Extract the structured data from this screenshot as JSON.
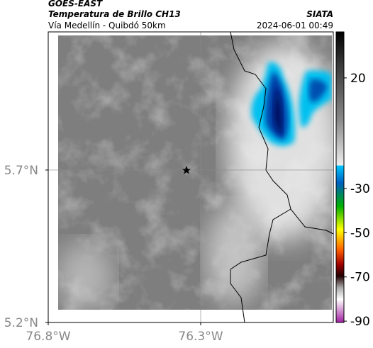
{
  "header": {
    "satellite": "GOES-EAST",
    "product": "Temperatura de Brillo CH13",
    "region": "Vía Medellín - Quibdó 50km",
    "agency": "SIATA",
    "datetime": "2024-06-01 00:49"
  },
  "map": {
    "xlim": [
      -76.8,
      -75.865
    ],
    "ylim": [
      5.2,
      6.153
    ],
    "xticks": [
      {
        "value": -76.8,
        "label": "76.8°W"
      },
      {
        "value": -76.3,
        "label": "76.3°W"
      }
    ],
    "yticks": [
      {
        "value": 5.7,
        "label": "5.7°N"
      },
      {
        "value": 5.2,
        "label": "5.2°N"
      }
    ],
    "grid": true
  },
  "colorbar": {
    "lim": [
      -90.6,
      40.8
    ],
    "ticks": [
      20,
      -30,
      -50,
      -70,
      -90
    ]
  }
}
